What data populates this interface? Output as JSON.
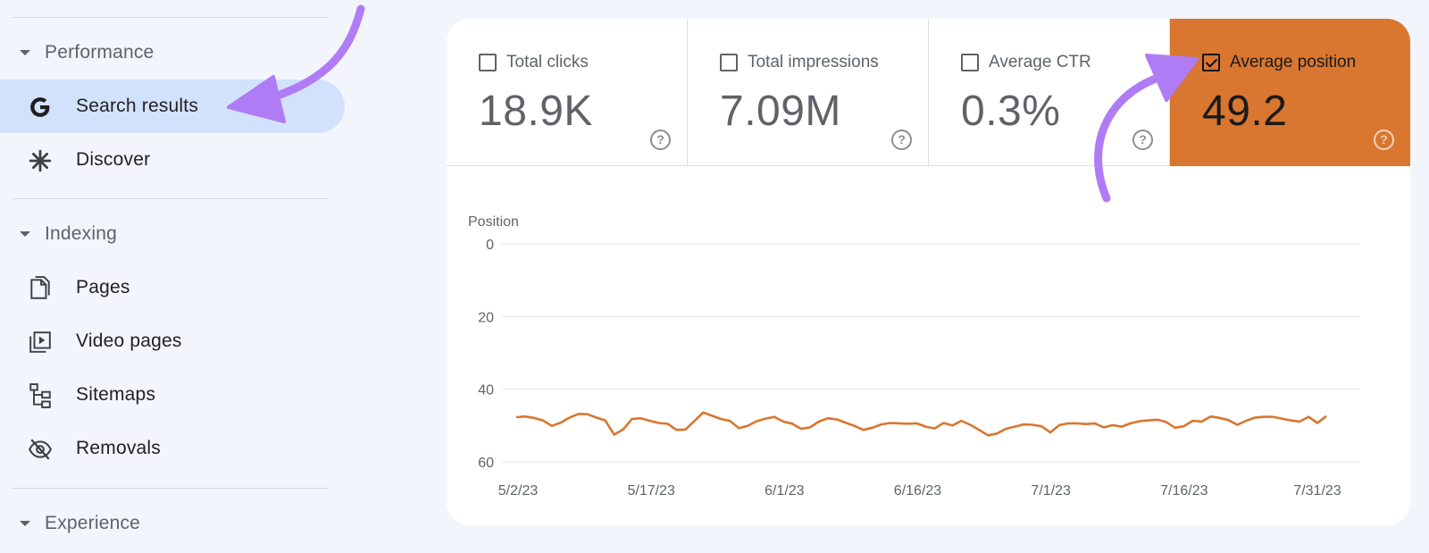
{
  "sidebar": {
    "sections": [
      {
        "label": "Performance",
        "icon": "caret-down-icon"
      },
      {
        "label": "Indexing",
        "icon": "caret-down-icon"
      },
      {
        "label": "Experience",
        "icon": "caret-down-icon"
      }
    ],
    "items": [
      {
        "label": "Search results",
        "icon": "google-g-icon",
        "active": true
      },
      {
        "label": "Discover",
        "icon": "asterisk-icon",
        "active": false
      },
      {
        "label": "Pages",
        "icon": "pages-icon",
        "active": false
      },
      {
        "label": "Video pages",
        "icon": "video-pages-icon",
        "active": false
      },
      {
        "label": "Sitemaps",
        "icon": "sitemap-icon",
        "active": false
      },
      {
        "label": "Removals",
        "icon": "eye-off-icon",
        "active": false
      }
    ]
  },
  "metrics": [
    {
      "label": "Total clicks",
      "value": "18.9K",
      "checked": false
    },
    {
      "label": "Total impressions",
      "value": "7.09M",
      "checked": false
    },
    {
      "label": "Average CTR",
      "value": "0.3%",
      "checked": false
    },
    {
      "label": "Average position",
      "value": "49.2",
      "checked": true
    }
  ],
  "colors": {
    "accent_orange": "#d9762f",
    "active_nav": "#d3e2fc",
    "arrow_purple": "#b07cf5"
  },
  "chart_data": {
    "type": "line",
    "ylabel": "Position",
    "ylim": [
      0,
      60
    ],
    "y_inverted": true,
    "y_ticks": [
      "0",
      "20",
      "40",
      "60"
    ],
    "x_tick_labels": [
      "5/2/23",
      "5/17/23",
      "6/1/23",
      "6/16/23",
      "7/1/23",
      "7/16/23",
      "7/31/23"
    ],
    "grid": true,
    "series": [
      {
        "color": "#d9762f",
        "values": [
          47.7,
          47.5,
          47.9,
          48.6,
          50.1,
          49.2,
          47.8,
          46.8,
          46.9,
          47.8,
          48.6,
          52.5,
          51.1,
          48.2,
          48.0,
          48.7,
          49.3,
          49.5,
          51.2,
          51.1,
          48.8,
          46.4,
          47.3,
          48.2,
          48.7,
          50.7,
          50.1,
          48.8,
          48.1,
          47.6,
          48.9,
          49.5,
          50.9,
          50.5,
          48.9,
          48.0,
          48.3,
          49.2,
          50.1,
          51.2,
          50.6,
          49.7,
          49.3,
          49.4,
          49.5,
          49.4,
          50.3,
          50.8,
          49.3,
          50.0,
          48.7,
          49.8,
          51.2,
          52.7,
          52.2,
          50.9,
          50.3,
          49.7,
          49.8,
          50.2,
          51.9,
          49.9,
          49.4,
          49.4,
          49.6,
          49.4,
          50.5,
          49.9,
          50.3,
          49.4,
          48.8,
          48.6,
          48.4,
          49.0,
          50.6,
          50.2,
          48.7,
          48.9,
          47.5,
          47.9,
          48.5,
          49.8,
          48.7,
          47.8,
          47.6,
          47.6,
          48.1,
          48.6,
          48.9,
          47.6,
          49.3,
          47.4
        ]
      }
    ]
  }
}
